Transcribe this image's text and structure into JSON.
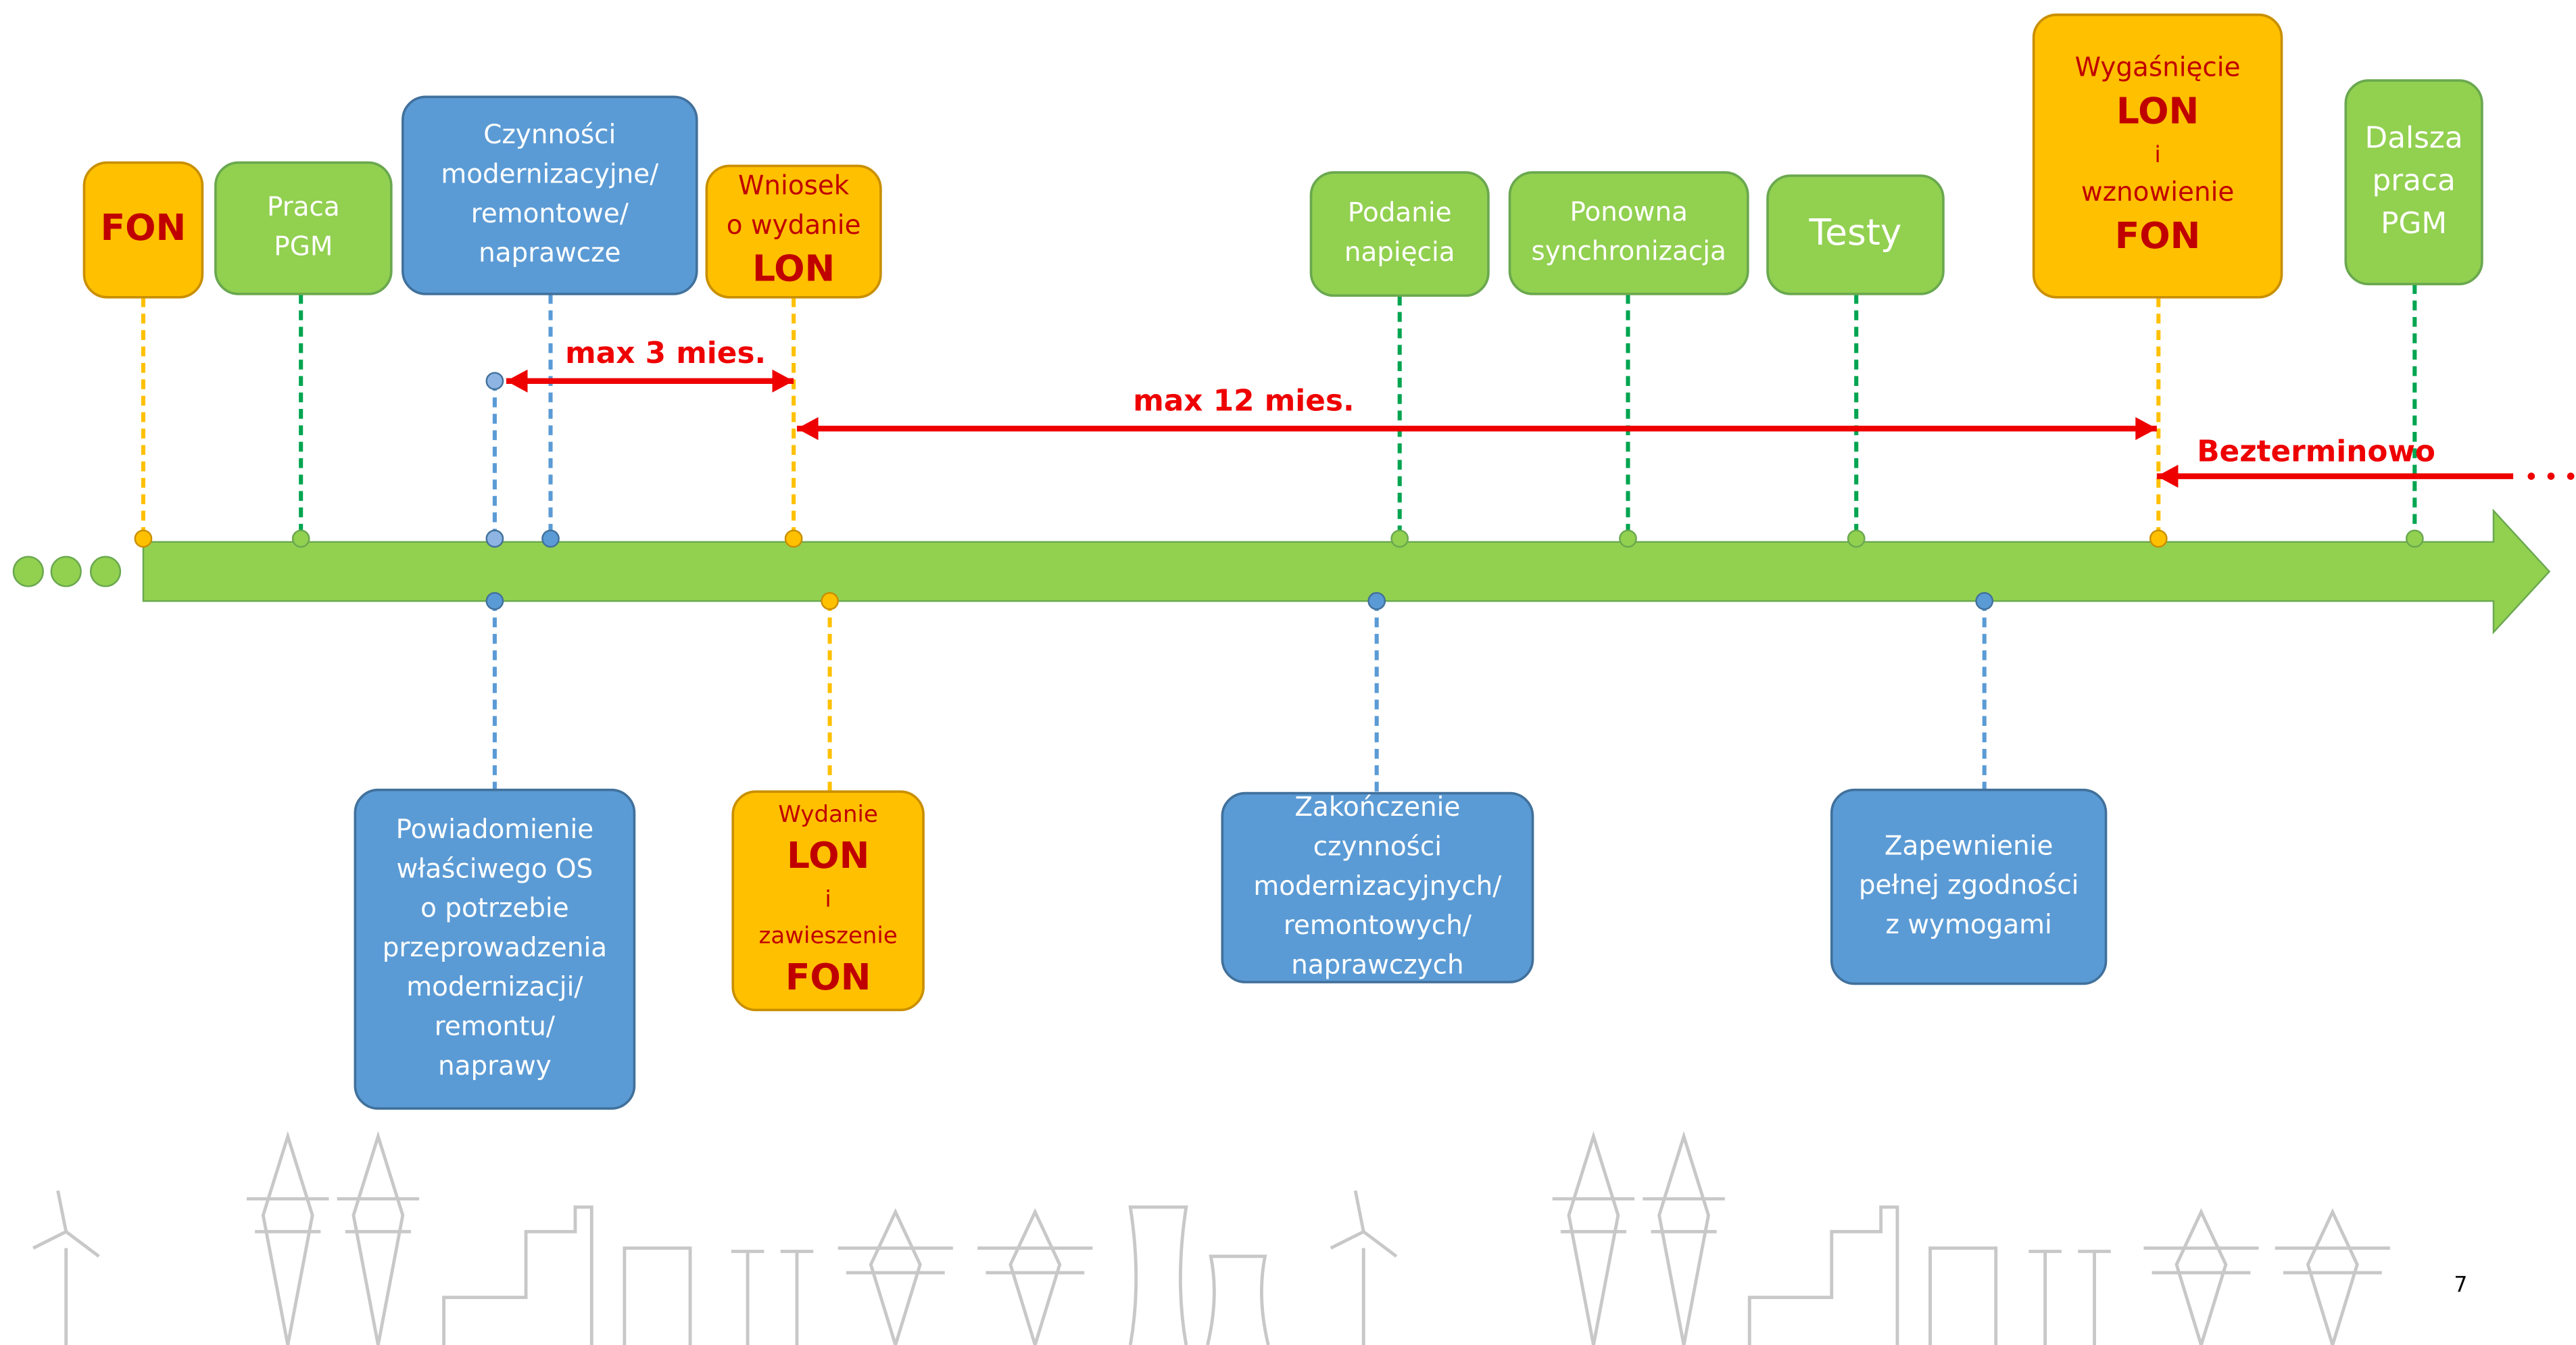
{
  "top_events": [
    {
      "lines": [
        "FON"
      ]
    },
    {
      "lines": [
        "Praca",
        "PGM"
      ]
    },
    {
      "lines": [
        "Czynności",
        "modernizacyjne/",
        "remontowe/",
        "naprawcze"
      ]
    },
    {
      "lines": [
        "Wniosek",
        "o wydanie",
        "LON"
      ]
    },
    {
      "lines": [
        "Podanie",
        "napięcia"
      ]
    },
    {
      "lines": [
        "Ponowna",
        "synchronizacja"
      ]
    },
    {
      "lines": [
        "Testy"
      ]
    },
    {
      "lines": [
        "Wygaśnięcie",
        "LON",
        "i",
        "wznowienie",
        "FON"
      ]
    },
    {
      "lines": [
        "Dalsza",
        "praca",
        "PGM"
      ]
    }
  ],
  "bottom_events": [
    {
      "lines": [
        "Powiadomienie",
        "właściwego OS",
        "o potrzebie",
        "przeprowadzenia",
        "modernizacji/",
        "remontu/",
        "naprawy"
      ]
    },
    {
      "lines": [
        "Wydanie",
        "LON",
        "i",
        "zawieszenie",
        "FON"
      ]
    },
    {
      "lines": [
        "Zakończenie",
        "czynności",
        "modernizacyjnych/",
        "remontowych/",
        "naprawczych"
      ]
    },
    {
      "lines": [
        "Zapewnienie",
        "pełnej zgodności",
        "z wymogami"
      ]
    }
  ],
  "spans": [
    {
      "label": "max 3 mies."
    },
    {
      "label": "max 12 mies."
    },
    {
      "label": "Bezterminowo"
    }
  ],
  "page_number": "7"
}
